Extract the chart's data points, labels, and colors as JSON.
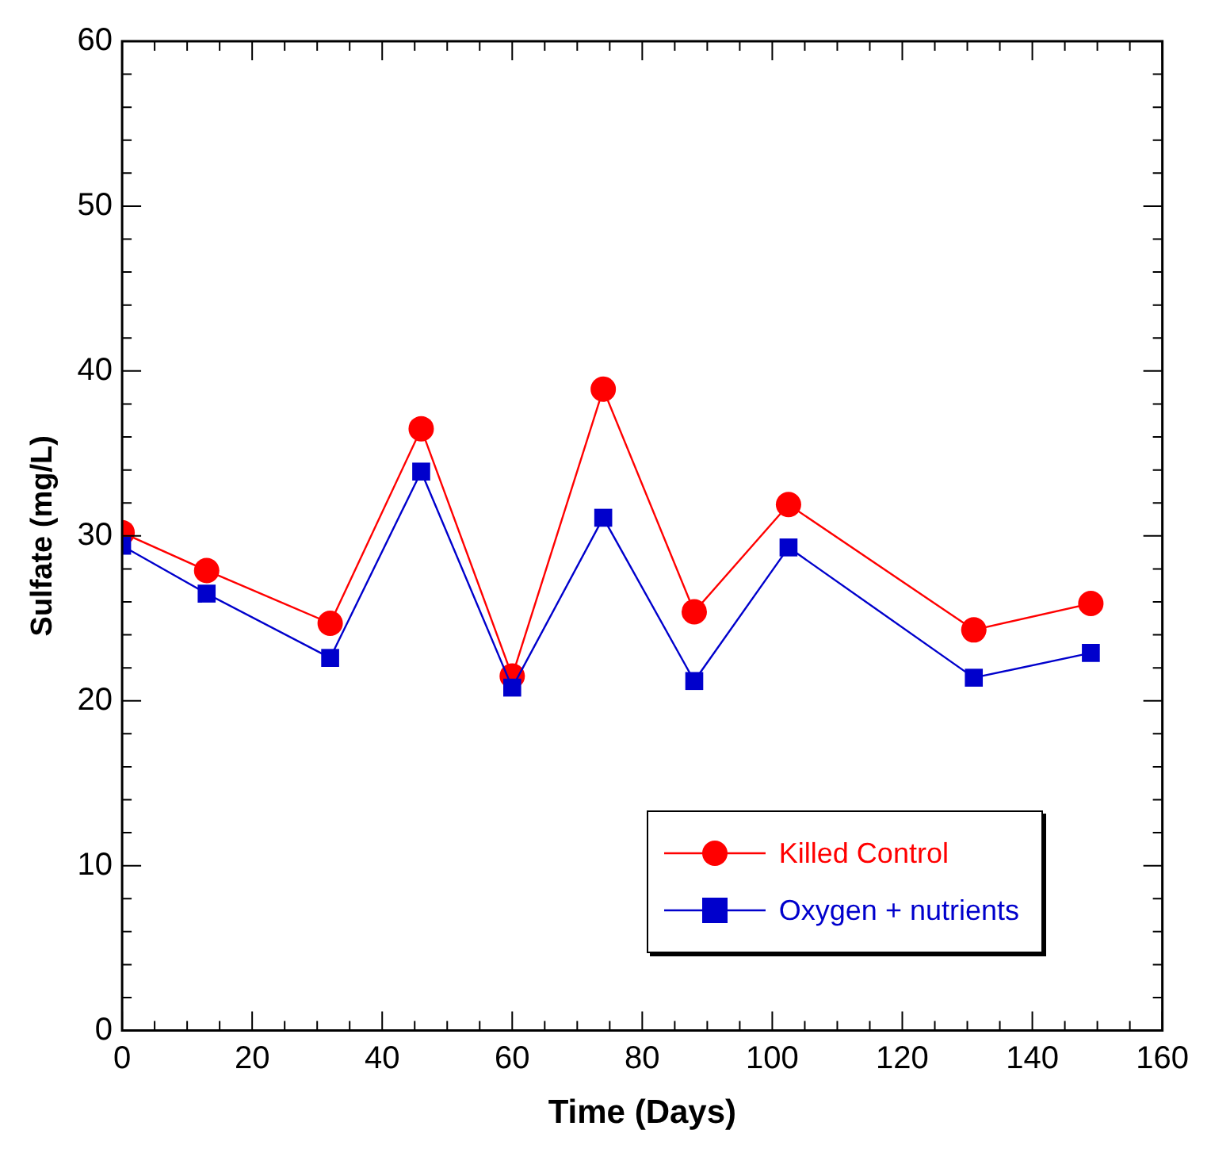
{
  "chart_data": {
    "type": "line",
    "xlabel": "Time (Days)",
    "ylabel": "Sulfate (mg/L)",
    "x": [
      0,
      13,
      32,
      46,
      60,
      74,
      88,
      102.5,
      131,
      149
    ],
    "xlim": [
      0,
      160
    ],
    "xticks": [
      0,
      20,
      40,
      60,
      80,
      100,
      120,
      140,
      160
    ],
    "ylim": [
      0,
      60
    ],
    "yticks": [
      0,
      10,
      20,
      30,
      40,
      50,
      60
    ],
    "grid": false,
    "legend": "bottom right",
    "series": [
      {
        "name": "Killed Control",
        "color": "#ff0000",
        "marker": "circle",
        "values": [
          30.2,
          27.9,
          24.7,
          36.5,
          21.5,
          38.9,
          25.4,
          31.9,
          24.3,
          25.9
        ]
      },
      {
        "name": "Oxygen + nutrients",
        "color": "#0000cc",
        "marker": "square",
        "values": [
          29.4,
          26.5,
          22.6,
          33.9,
          20.8,
          31.1,
          21.2,
          29.3,
          21.4,
          22.9
        ]
      }
    ]
  }
}
